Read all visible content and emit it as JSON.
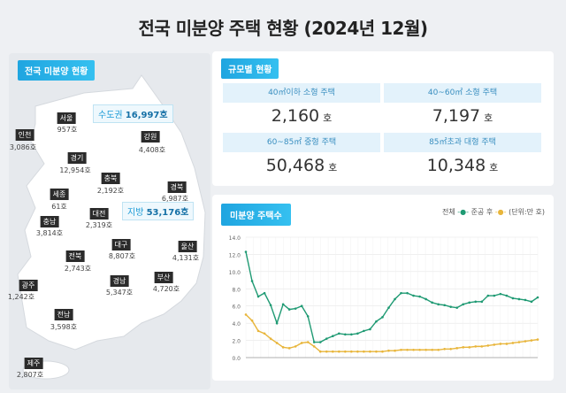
{
  "title": "전국 미분양 주택 현황 (2024년 12월)",
  "map": {
    "tag": "전국 미분양 현황",
    "capital_area": {
      "label": "수도권",
      "value": "16,997호"
    },
    "provinces_total": {
      "label": "지방",
      "value": "53,176호"
    },
    "regions": [
      {
        "name": "서울",
        "value": "957호"
      },
      {
        "name": "인천",
        "value": "3,086호"
      },
      {
        "name": "강원",
        "value": "4,408호"
      },
      {
        "name": "경기",
        "value": "12,954호"
      },
      {
        "name": "충북",
        "value": "2,192호"
      },
      {
        "name": "경북",
        "value": "6,987호"
      },
      {
        "name": "세종",
        "value": "61호"
      },
      {
        "name": "대전",
        "value": "2,319호"
      },
      {
        "name": "충남",
        "value": "3,814호"
      },
      {
        "name": "대구",
        "value": "8,807호"
      },
      {
        "name": "울산",
        "value": "4,131호"
      },
      {
        "name": "전북",
        "value": "2,743호"
      },
      {
        "name": "경남",
        "value": "5,347호"
      },
      {
        "name": "부산",
        "value": "4,720호"
      },
      {
        "name": "광주",
        "value": "1,242호"
      },
      {
        "name": "전남",
        "value": "3,598호"
      },
      {
        "name": "제주",
        "value": "2,807호"
      }
    ]
  },
  "size": {
    "tag": "규모별 현황",
    "unit": "호",
    "items": [
      {
        "label": "40㎡이하 소형 주택",
        "value": "2,160"
      },
      {
        "label": "40~60㎡ 소형 주택",
        "value": "7,197"
      },
      {
        "label": "60~85㎡ 중형 주택",
        "value": "50,468"
      },
      {
        "label": "85㎡초과 대형 주택",
        "value": "10,348"
      }
    ]
  },
  "chart_data": {
    "type": "line",
    "tag": "미분양 주택수",
    "unit_note": "(단위:만 호)",
    "ylim": [
      0,
      14
    ],
    "yticks": [
      "0.0",
      "2.0",
      "4.0",
      "6.0",
      "8.0",
      "10.0",
      "12.0",
      "14.0"
    ],
    "grid": true,
    "legend": "top-right",
    "series": [
      {
        "name": "전체",
        "color": "#1f9a73",
        "values": [
          12.3,
          8.9,
          7.1,
          7.5,
          6.1,
          4.0,
          6.2,
          5.6,
          5.7,
          6.0,
          4.8,
          1.8,
          1.8,
          2.2,
          2.5,
          2.8,
          2.7,
          2.7,
          2.8,
          3.1,
          3.3,
          4.2,
          4.7,
          5.8,
          6.8,
          7.5,
          7.5,
          7.2,
          7.1,
          6.8,
          6.4,
          6.2,
          6.1,
          5.9,
          5.8,
          6.2,
          6.4,
          6.5,
          6.5,
          7.2,
          7.2,
          7.4,
          7.2,
          6.9,
          6.8,
          6.7,
          6.5,
          7.0
        ]
      },
      {
        "name": "준공 후",
        "color": "#e8b53a",
        "values": [
          5.0,
          4.3,
          3.1,
          2.8,
          2.2,
          1.7,
          1.2,
          1.1,
          1.3,
          1.7,
          1.8,
          1.3,
          0.7,
          0.7,
          0.7,
          0.7,
          0.7,
          0.7,
          0.7,
          0.7,
          0.7,
          0.7,
          0.7,
          0.8,
          0.8,
          0.9,
          0.9,
          0.9,
          0.9,
          0.9,
          0.9,
          0.9,
          1.0,
          1.0,
          1.1,
          1.2,
          1.2,
          1.3,
          1.3,
          1.4,
          1.5,
          1.6,
          1.6,
          1.7,
          1.8,
          1.9,
          2.0,
          2.1
        ]
      }
    ]
  }
}
